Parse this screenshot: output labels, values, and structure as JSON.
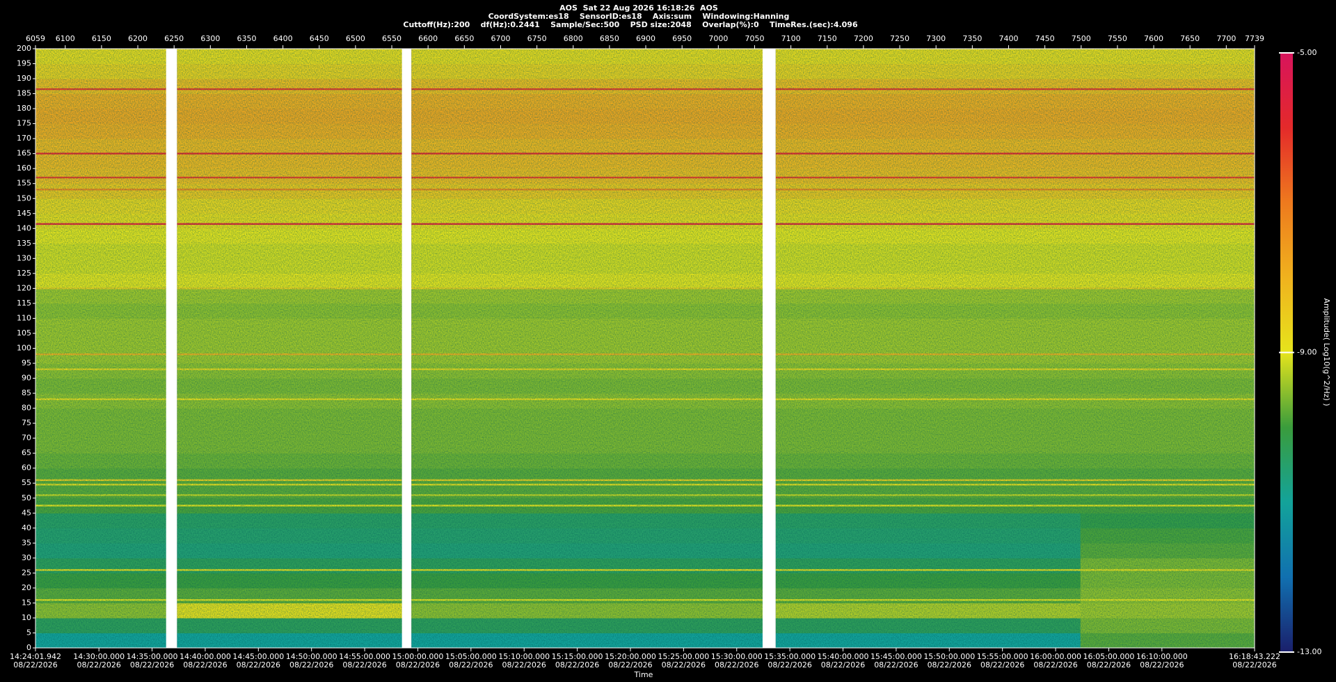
{
  "chart_data": {
    "type": "spectrogram",
    "title": "AOS  Sat 22 Aug 2026 16:18:26  AOS",
    "subtitle": [
      "CoordSystem:es18    SensorID:es18    Axis:sum    Windowing:Hanning",
      "Cuttoff(Hz):200    df(Hz):0.2441    Sample/Sec:500    PSD size:2048    Overlap(%):0    TimeRes.(sec):4.096"
    ],
    "xlabel": "Time",
    "colorbar_label": "Amplitude( Log10(g^2/Hz) )",
    "xlim": [
      6059,
      7739
    ],
    "xticks": [
      6059,
      6100,
      6150,
      6200,
      6250,
      6300,
      6350,
      6400,
      6450,
      6500,
      6550,
      6600,
      6650,
      6700,
      6750,
      6800,
      6850,
      6900,
      6950,
      7000,
      7050,
      7100,
      7150,
      7200,
      7250,
      7300,
      7350,
      7400,
      7450,
      7500,
      7550,
      7600,
      7650,
      7700,
      7739
    ],
    "time_ticks": [
      {
        "value": 6059,
        "label": "14:24:01.942"
      },
      {
        "value": 6146.42,
        "label": "14:30:00.000"
      },
      {
        "value": 6219.66,
        "label": "14:35:00.000"
      },
      {
        "value": 6292.9,
        "label": "14:40:00.000"
      },
      {
        "value": 6366.15,
        "label": "14:45:00.000"
      },
      {
        "value": 6439.39,
        "label": "14:50:00.000"
      },
      {
        "value": 6512.63,
        "label": "14:55:00.000"
      },
      {
        "value": 6585.88,
        "label": "15:00:00.000"
      },
      {
        "value": 6659.12,
        "label": "15:05:00.000"
      },
      {
        "value": 6732.36,
        "label": "15:10:00.000"
      },
      {
        "value": 6805.61,
        "label": "15:15:00.000"
      },
      {
        "value": 6878.85,
        "label": "15:20:00.000"
      },
      {
        "value": 6952.09,
        "label": "15:25:00.000"
      },
      {
        "value": 7025.34,
        "label": "15:30:00.000"
      },
      {
        "value": 7098.58,
        "label": "15:35:00.000"
      },
      {
        "value": 7171.82,
        "label": "15:40:00.000"
      },
      {
        "value": 7245.07,
        "label": "15:45:00.000"
      },
      {
        "value": 7318.31,
        "label": "15:50:00.000"
      },
      {
        "value": 7391.55,
        "label": "15:55:00.000"
      },
      {
        "value": 7464.8,
        "label": "16:00:00.000"
      },
      {
        "value": 7538.04,
        "label": "16:05:00.000"
      },
      {
        "value": 7611.28,
        "label": "16:10:00.000"
      },
      {
        "value": 7739,
        "label": "16:18:43.222"
      }
    ],
    "time_date": "08/22/2026",
    "ylim": [
      0,
      200
    ],
    "yticks": [
      0,
      5,
      10,
      15,
      20,
      25,
      30,
      35,
      40,
      45,
      50,
      55,
      60,
      65,
      70,
      75,
      80,
      85,
      90,
      95,
      100,
      105,
      110,
      115,
      120,
      125,
      130,
      135,
      140,
      145,
      150,
      155,
      160,
      165,
      170,
      175,
      180,
      185,
      190,
      195,
      200
    ],
    "xbins": [
      6059,
      6239,
      6254,
      6564,
      6577,
      7061,
      7079,
      7499,
      7739
    ],
    "ybins": [
      0,
      5,
      10,
      15,
      20,
      25,
      30,
      35,
      40,
      45,
      50,
      55,
      60,
      65,
      70,
      75,
      80,
      85,
      90,
      95,
      100,
      105,
      110,
      115,
      120,
      125,
      130,
      135,
      140,
      145,
      150,
      155,
      160,
      165,
      170,
      175,
      180,
      185,
      190,
      195,
      200
    ],
    "z": [
      [
        -11.0,
        null,
        -11.0,
        null,
        -11.0,
        null,
        -11.0,
        -9.8
      ],
      [
        -10.3,
        null,
        -10.3,
        null,
        -10.3,
        null,
        -10.3,
        -9.6
      ],
      [
        -9.5,
        null,
        -8.9,
        null,
        -9.5,
        null,
        -9.3,
        -9.4
      ],
      [
        -9.8,
        null,
        -9.8,
        null,
        -9.8,
        null,
        -9.8,
        -9.5
      ],
      [
        -10.0,
        null,
        -10.0,
        null,
        -10.0,
        null,
        -10.0,
        -9.6
      ],
      [
        -10.3,
        null,
        -10.3,
        null,
        -10.3,
        null,
        -10.3,
        -9.6
      ],
      [
        -10.6,
        null,
        -10.6,
        null,
        -10.6,
        null,
        -10.6,
        -9.8
      ],
      [
        -10.5,
        null,
        -10.5,
        null,
        -10.5,
        null,
        -10.5,
        -9.9
      ],
      [
        -10.4,
        null,
        -10.4,
        null,
        -10.4,
        null,
        -10.4,
        -10.1
      ],
      [
        -9.9,
        null,
        -9.9,
        null,
        -9.9,
        null,
        -9.9,
        -9.9
      ],
      [
        -9.8,
        null,
        -9.8,
        null,
        -9.8,
        null,
        -9.8,
        -9.8
      ],
      [
        -9.8,
        null,
        -9.8,
        null,
        -9.8,
        null,
        -9.8,
        -9.8
      ],
      [
        -9.7,
        null,
        -9.7,
        null,
        -9.7,
        null,
        -9.7,
        -9.7
      ],
      [
        -9.6,
        null,
        -9.6,
        null,
        -9.6,
        null,
        -9.6,
        -9.6
      ],
      [
        -9.6,
        null,
        -9.6,
        null,
        -9.6,
        null,
        -9.6,
        -9.6
      ],
      [
        -9.6,
        null,
        -9.6,
        null,
        -9.6,
        null,
        -9.6,
        -9.6
      ],
      [
        -9.5,
        null,
        -9.5,
        null,
        -9.5,
        null,
        -9.5,
        -9.5
      ],
      [
        -9.6,
        null,
        -9.6,
        null,
        -9.6,
        null,
        -9.6,
        -9.6
      ],
      [
        -9.5,
        null,
        -9.5,
        null,
        -9.5,
        null,
        -9.5,
        -9.5
      ],
      [
        -9.4,
        null,
        -9.4,
        null,
        -9.4,
        null,
        -9.4,
        -9.4
      ],
      [
        -9.4,
        null,
        -9.4,
        null,
        -9.4,
        null,
        -9.4,
        -9.4
      ],
      [
        -9.4,
        null,
        -9.4,
        null,
        -9.4,
        null,
        -9.4,
        -9.4
      ],
      [
        -9.5,
        null,
        -9.5,
        null,
        -9.5,
        null,
        -9.5,
        -9.5
      ],
      [
        -9.4,
        null,
        -9.4,
        null,
        -9.4,
        null,
        -9.4,
        -9.4
      ],
      [
        -9.0,
        null,
        -9.0,
        null,
        -9.0,
        null,
        -9.0,
        -9.0
      ],
      [
        -9.1,
        null,
        -9.1,
        null,
        -9.1,
        null,
        -9.1,
        -9.1
      ],
      [
        -9.1,
        null,
        -9.1,
        null,
        -9.1,
        null,
        -9.1,
        -9.1
      ],
      [
        -9.0,
        null,
        -9.0,
        null,
        -9.0,
        null,
        -9.0,
        -9.0
      ],
      [
        -8.8,
        null,
        -8.8,
        null,
        -8.8,
        null,
        -8.8,
        -8.8
      ],
      [
        -8.7,
        null,
        -8.7,
        null,
        -8.7,
        null,
        -8.7,
        -8.7
      ],
      [
        -8.4,
        null,
        -8.4,
        null,
        -8.4,
        null,
        -8.4,
        -8.4
      ],
      [
        -8.2,
        null,
        -8.2,
        null,
        -8.2,
        null,
        -8.2,
        -8.2
      ],
      [
        -8.1,
        null,
        -8.1,
        null,
        -8.1,
        null,
        -8.1,
        -8.1
      ],
      [
        -8.1,
        null,
        -8.1,
        null,
        -8.1,
        null,
        -8.1,
        -8.1
      ],
      [
        -7.9,
        null,
        -7.9,
        null,
        -7.9,
        null,
        -7.9,
        -7.9
      ],
      [
        -7.8,
        null,
        -7.8,
        null,
        -7.8,
        null,
        -7.8,
        -7.8
      ],
      [
        -7.9,
        null,
        -7.9,
        null,
        -7.9,
        null,
        -7.9,
        -7.9
      ],
      [
        -8.2,
        null,
        -8.2,
        null,
        -8.2,
        null,
        -8.2,
        -8.2
      ],
      [
        -8.6,
        null,
        -8.6,
        null,
        -8.6,
        null,
        -8.6,
        -8.6
      ],
      [
        -8.8,
        null,
        -8.8,
        null,
        -8.8,
        null,
        -8.8,
        -8.8
      ]
    ],
    "lines": [
      {
        "freq": 186.5,
        "value": -6.2
      },
      {
        "freq": 165,
        "value": -6.0
      },
      {
        "freq": 157,
        "value": -6.3
      },
      {
        "freq": 153,
        "value": -7.2
      },
      {
        "freq": 141.5,
        "value": -5.8
      },
      {
        "freq": 120,
        "value": -8.6
      },
      {
        "freq": 98,
        "value": -8.0
      },
      {
        "freq": 93,
        "value": -8.8
      },
      {
        "freq": 83,
        "value": -8.9
      },
      {
        "freq": 56,
        "value": -8.6
      },
      {
        "freq": 54.5,
        "value": -8.9
      },
      {
        "freq": 51,
        "value": -9.2
      },
      {
        "freq": 47.5,
        "value": -9.0
      },
      {
        "freq": 26,
        "value": -8.9
      },
      {
        "freq": 16,
        "value": -9.0
      }
    ],
    "zlim": [
      -13,
      -5
    ],
    "zticks": [
      {
        "value": -5,
        "label": "-5.00"
      },
      {
        "value": -9,
        "label": "-9.00"
      },
      {
        "value": -13,
        "label": "-13.00"
      }
    ],
    "colormap": [
      "#1a1f6b",
      "#1170b0",
      "#13a39a",
      "#3a9c3c",
      "#e6e41c",
      "#f0b21e",
      "#ee7a1e",
      "#e42a2a",
      "#d8145c"
    ]
  }
}
